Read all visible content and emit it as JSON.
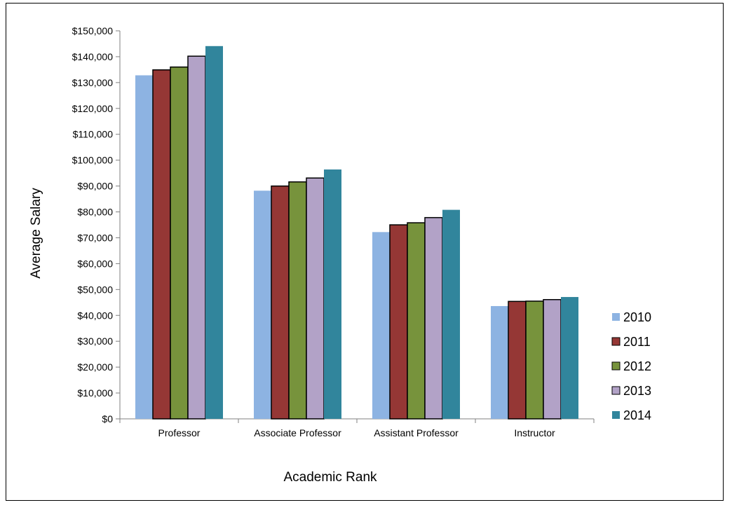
{
  "chart_data": {
    "type": "bar",
    "xlabel": "Academic Rank",
    "ylabel": "Average Salary",
    "ylim": [
      0,
      150000
    ],
    "y_tick_step": 10000,
    "y_tick_format": "currency",
    "categories": [
      "Professor",
      "Associate Professor",
      "Assistant Professor",
      "Instructor"
    ],
    "series": [
      {
        "name": "2010",
        "values": [
          132800,
          88200,
          72200,
          43600
        ],
        "color": "#8db3e2",
        "outlined": false
      },
      {
        "name": "2011",
        "values": [
          134900,
          90000,
          75000,
          45400
        ],
        "color": "#953735",
        "outlined": true
      },
      {
        "name": "2012",
        "values": [
          136000,
          91600,
          75800,
          45500
        ],
        "color": "#77933c",
        "outlined": true
      },
      {
        "name": "2013",
        "values": [
          140200,
          93100,
          77800,
          46100
        ],
        "color": "#b2a2c7",
        "outlined": true
      },
      {
        "name": "2014",
        "values": [
          144100,
          96400,
          80800,
          47100
        ],
        "color": "#31859c",
        "outlined": false
      }
    ],
    "grid": false,
    "legend": "right"
  }
}
